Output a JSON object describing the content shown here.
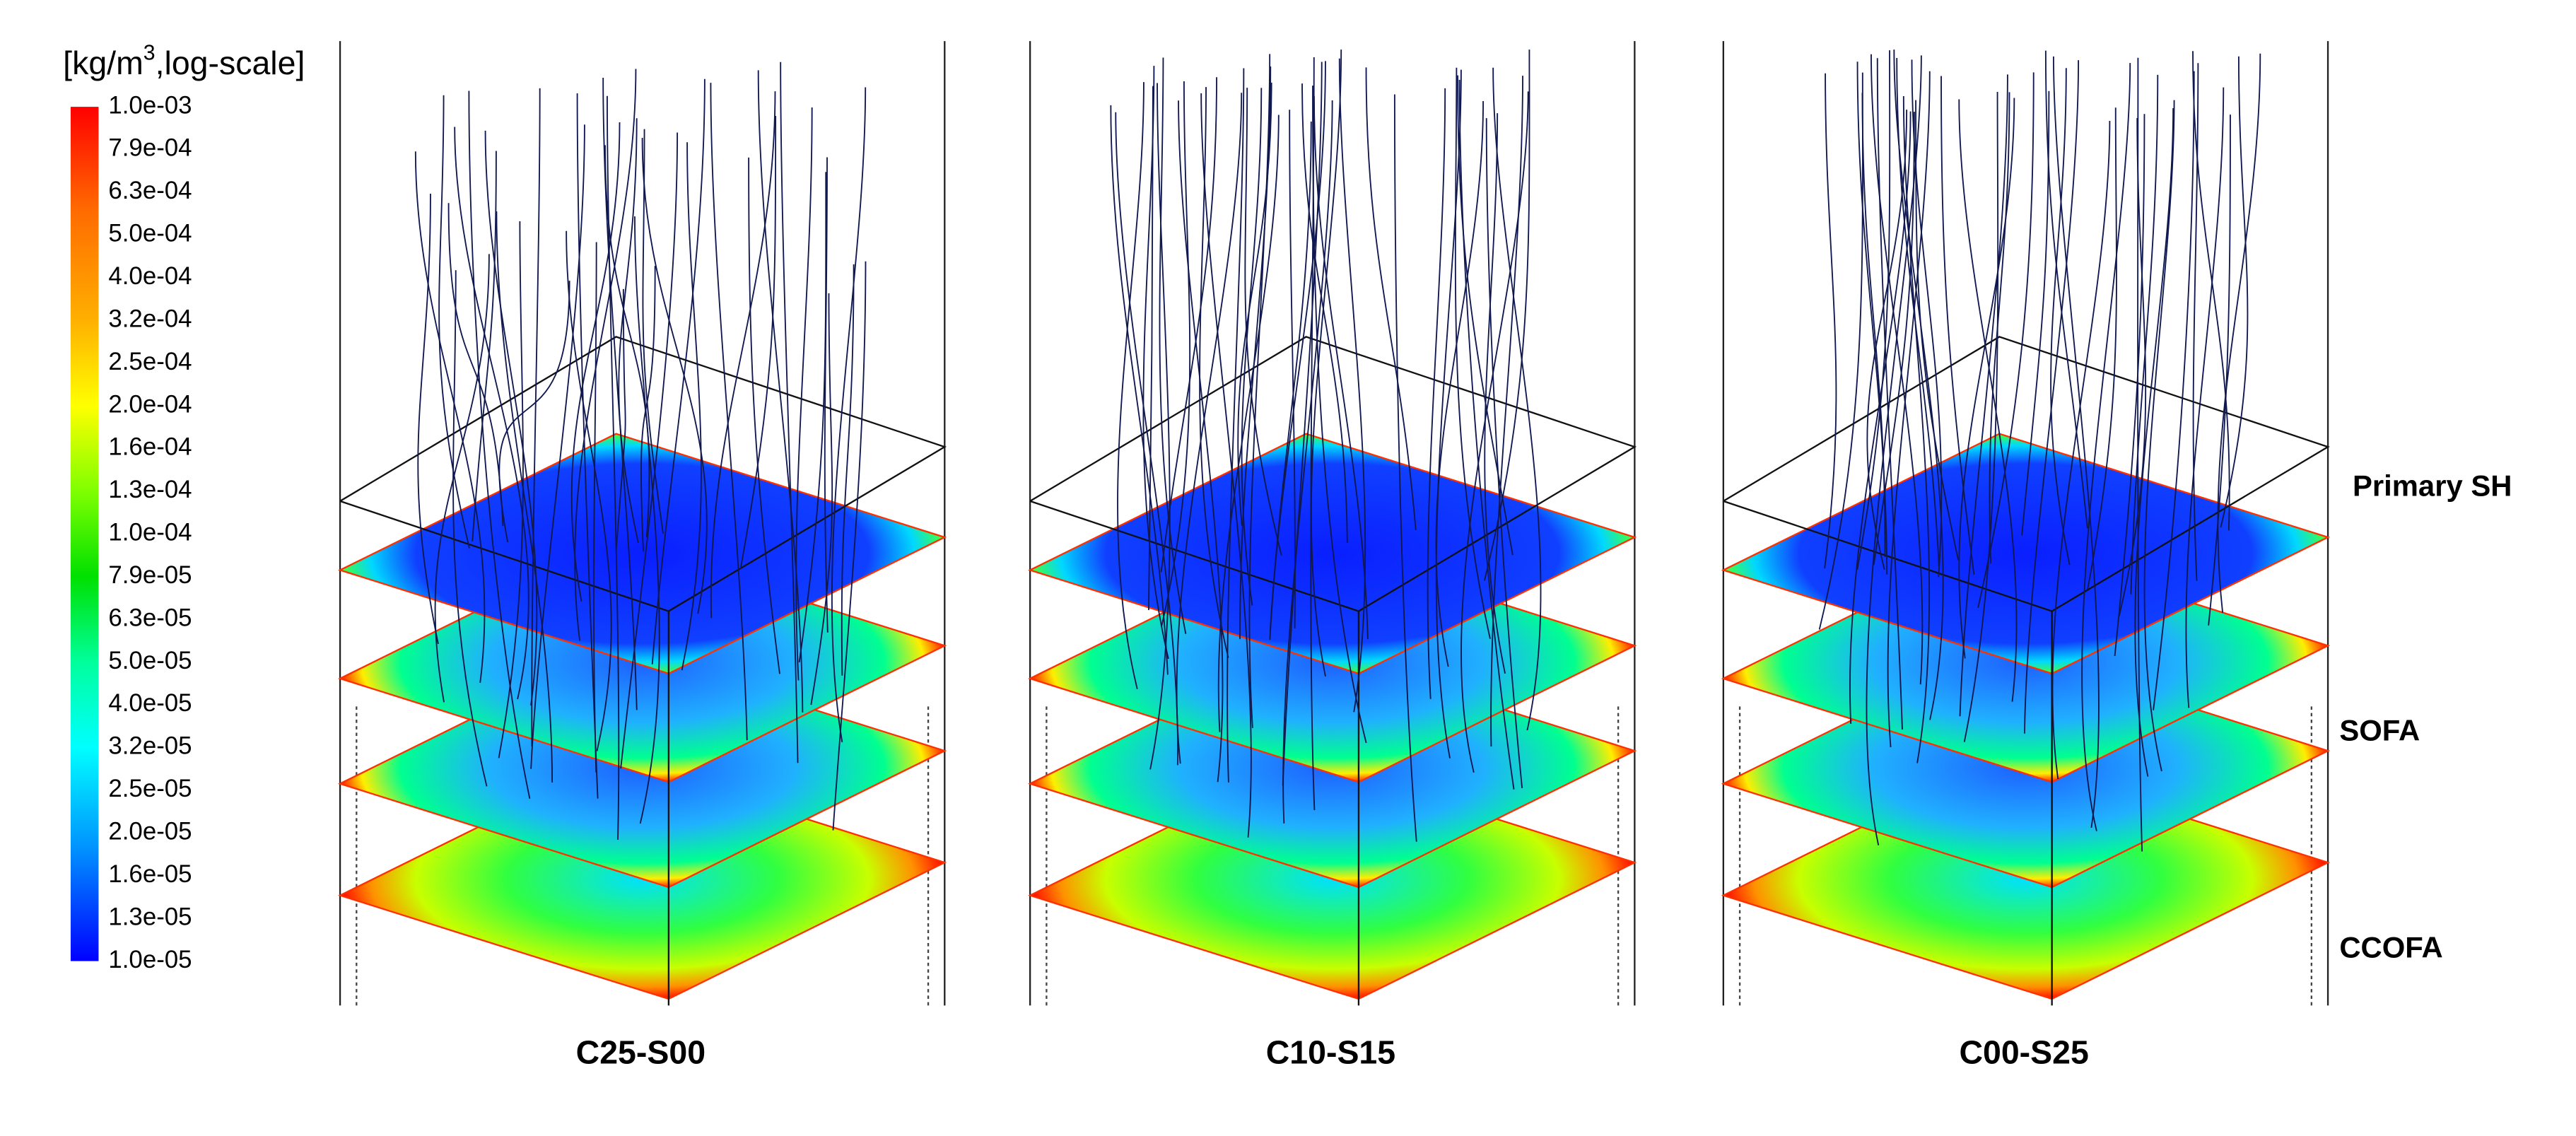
{
  "legend": {
    "title": {
      "before": "[kg/m",
      "superscript": "3",
      "after": ",log-scale]"
    },
    "labels": [
      "1.0e-03",
      "7.9e-04",
      "6.3e-04",
      "5.0e-04",
      "4.0e-04",
      "3.2e-04",
      "2.5e-04",
      "2.0e-04",
      "1.6e-04",
      "1.3e-04",
      "1.0e-04",
      "7.9e-05",
      "6.3e-05",
      "5.0e-05",
      "4.0e-05",
      "3.2e-05",
      "2.5e-05",
      "2.0e-05",
      "1.6e-05",
      "1.3e-05",
      "1.0e-05"
    ]
  },
  "panels": [
    {
      "label": "C25-S00"
    },
    {
      "label": "C10-S15"
    },
    {
      "label": "C00-S25"
    }
  ],
  "levels": [
    {
      "label": "Primary SH"
    },
    {
      "label": "SOFA"
    },
    {
      "label": "CCOFA"
    }
  ]
}
